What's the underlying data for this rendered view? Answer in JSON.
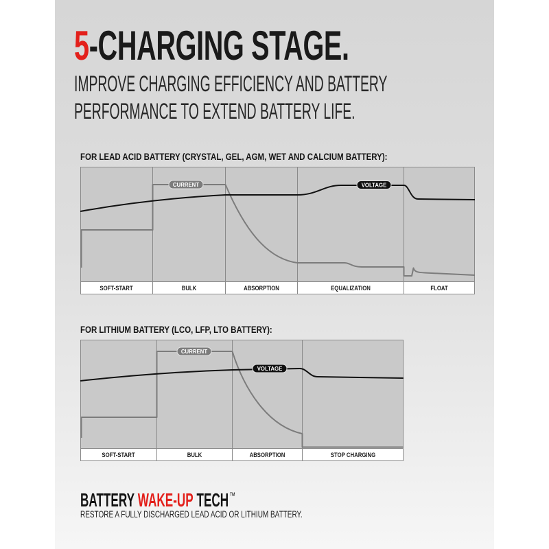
{
  "header": {
    "title_number": "5",
    "title_text": "-CHARGING STAGE.",
    "subtitle_line1": "IMPROVE CHARGING EFFICIENCY AND BATTERY",
    "subtitle_line2": "PERFORMANCE TO EXTEND BATTERY LIFE."
  },
  "lead_acid": {
    "heading": "FOR LEAD ACID BATTERY (CRYSTAL, GEL, AGM, WET AND CALCIUM BATTERY):",
    "current_label": "CURRENT",
    "voltage_label": "VOLTAGE",
    "stages": [
      "SOFT-START",
      "BULK",
      "ABSORPTION",
      "EQUALIZATION",
      "FLOAT"
    ]
  },
  "lithium": {
    "heading": "FOR LITHIUM BATTERY (LCO, LFP, LTO BATTERY):",
    "current_label": "CURRENT",
    "voltage_label": "VOLTAGE",
    "stages": [
      "SOFT-START",
      "BULK",
      "ABSORPTION",
      "STOP CHARGING"
    ]
  },
  "wake_up": {
    "title_start": "BATTERY",
    "title_highlight": "WAKE-UP",
    "title_end": "TECH",
    "trademark": "™",
    "description": "RESTORE A FULLY DISCHARGED LEAD ACID OR LITHIUM BATTERY."
  },
  "colors": {
    "accent": "#e3201b",
    "text": "#1a1a1a",
    "voltage_line": "#111111",
    "current_line": "#7c7c7c",
    "chart_background": "#c9c9c9"
  }
}
